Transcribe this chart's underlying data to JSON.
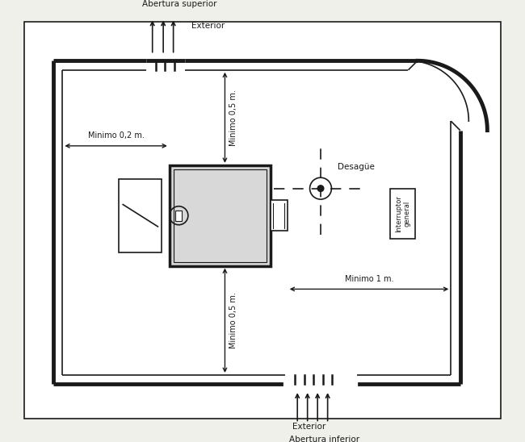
{
  "bg_color": "#f0f0eb",
  "line_color": "#1a1a1a",
  "white": "#ffffff",
  "labels": {
    "abertura_superior": "Abertura superior",
    "exterior_top": "Exterior",
    "minimo_02": "Minimo 0,2 m.",
    "minimo_05_top": "Minimo 0,5 m.",
    "minimo_05_bot": "Minimo 0,5 m.",
    "minimo_1": "Minimo 1 m.",
    "desague": "Desagüe",
    "interruptor": "Interruptor\ngeneral",
    "exterior_bot": "Exterior",
    "abertura_inferior": "Abertura inferior"
  },
  "font_size": 7.0,
  "lw_outer": 3.5,
  "lw_inner": 1.2,
  "lw_wall": 2.5
}
